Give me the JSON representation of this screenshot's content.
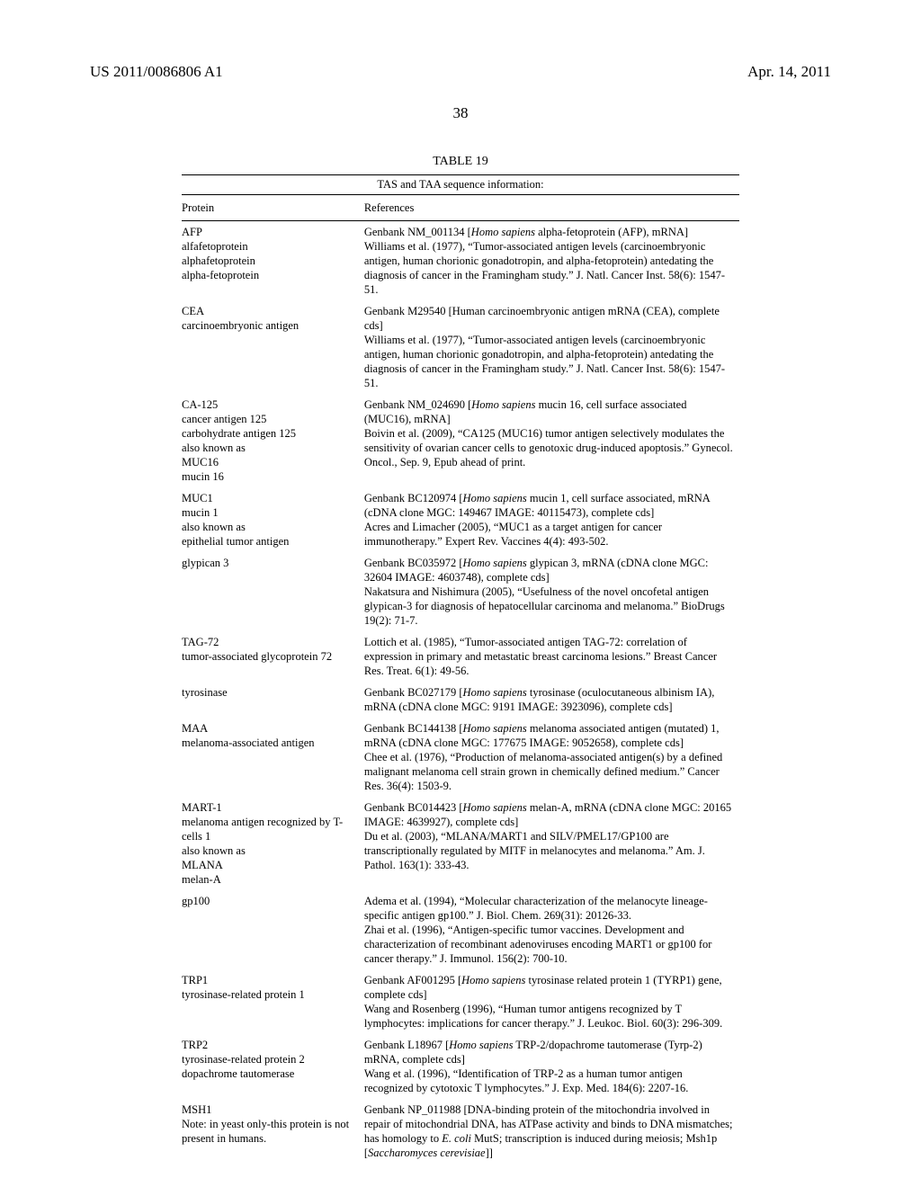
{
  "header": {
    "left": "US 2011/0086806 A1",
    "right": "Apr. 14, 2011"
  },
  "page_number": "38",
  "table": {
    "title": "TABLE 19",
    "caption": "TAS and TAA sequence information:",
    "col_protein": "Protein",
    "col_references": "References",
    "rows": [
      {
        "protein": "AFP\nalfafetoprotein\nalphafetoprotein\nalpha-fetoprotein",
        "refs": "Genbank NM_001134 [<i>Homo sapiens</i> alpha-fetoprotein (AFP), mRNA]\nWilliams et al. (1977), “Tumor-associated antigen levels (carcinoembryonic antigen, human chorionic gonadotropin, and alpha-fetoprotein) antedating the diagnosis of cancer in the Framingham study.” J. Natl. Cancer Inst. 58(6): 1547-51."
      },
      {
        "protein": "CEA\ncarcinoembryonic antigen",
        "refs": "Genbank M29540 [Human carcinoembryonic antigen mRNA (CEA), complete cds]\nWilliams et al. (1977), “Tumor-associated antigen levels (carcinoembryonic antigen, human chorionic gonadotropin, and alpha-fetoprotein) antedating the diagnosis of cancer in the Framingham study.” J. Natl. Cancer Inst. 58(6): 1547-51."
      },
      {
        "protein": "CA-125\ncancer antigen 125\ncarbohydrate antigen 125\nalso known as\nMUC16\nmucin 16",
        "refs": "Genbank NM_024690 [<i>Homo sapiens</i> mucin 16, cell surface associated (MUC16), mRNA]\nBoivin et al. (2009), “CA125 (MUC16) tumor antigen selectively modulates the sensitivity of ovarian cancer cells to genotoxic drug-induced apoptosis.” Gynecol. Oncol., Sep. 9, Epub ahead of print."
      },
      {
        "protein": "MUC1\nmucin 1\nalso known as\nepithelial tumor antigen",
        "refs": "Genbank BC120974 [<i>Homo sapiens</i> mucin 1, cell surface associated, mRNA (cDNA clone MGC: 149467 IMAGE: 40115473), complete cds]\nAcres and Limacher (2005), “MUC1 as a target antigen for cancer immunotherapy.” Expert Rev. Vaccines 4(4): 493-502."
      },
      {
        "protein": "glypican 3",
        "refs": "Genbank BC035972 [<i>Homo sapiens</i> glypican 3, mRNA (cDNA clone MGC: 32604 IMAGE: 4603748), complete cds]\nNakatsura and Nishimura (2005), “Usefulness of the novel oncofetal antigen glypican-3 for diagnosis of hepatocellular carcinoma and melanoma.” BioDrugs 19(2): 71-7."
      },
      {
        "protein": "TAG-72\ntumor-associated glycoprotein 72",
        "refs": "Lottich et al. (1985), “Tumor-associated antigen TAG-72: correlation of expression in primary and metastatic breast carcinoma lesions.” Breast Cancer Res. Treat. 6(1): 49-56."
      },
      {
        "protein": "tyrosinase",
        "refs": "Genbank BC027179 [<i>Homo sapiens</i> tyrosinase (oculocutaneous albinism IA), mRNA (cDNA clone MGC: 9191 IMAGE: 3923096), complete cds]"
      },
      {
        "protein": "MAA\nmelanoma-associated antigen",
        "refs": "Genbank BC144138 [<i>Homo sapiens</i> melanoma associated antigen (mutated) 1, mRNA (cDNA clone MGC: 177675 IMAGE: 9052658), complete cds]\nChee et al. (1976), “Production of melanoma-associated antigen(s) by a defined malignant melanoma cell strain grown in chemically defined medium.” Cancer Res. 36(4): 1503-9."
      },
      {
        "protein": "MART-1\nmelanoma antigen recognized by T-cells 1\nalso known as\nMLANA\nmelan-A",
        "refs": "Genbank BC014423 [<i>Homo sapiens</i> melan-A, mRNA (cDNA clone MGC: 20165 IMAGE: 4639927), complete cds]\nDu et al. (2003), “MLANA/MART1 and SILV/PMEL17/GP100 are transcriptionally regulated by MITF in melanocytes and melanoma.” Am. J. Pathol. 163(1): 333-43."
      },
      {
        "protein": "gp100",
        "refs": "Adema et al. (1994), “Molecular characterization of the melanocyte lineage-specific antigen gp100.” J. Biol. Chem. 269(31): 20126-33.\nZhai et al. (1996), “Antigen-specific tumor vaccines. Development and characterization of recombinant adenoviruses encoding MART1 or gp100 for cancer therapy.” J. Immunol. 156(2): 700-10."
      },
      {
        "protein": "TRP1\ntyrosinase-related protein 1",
        "refs": "Genbank AF001295 [<i>Homo sapiens</i> tyrosinase related protein 1 (TYRP1) gene, complete cds]\nWang and Rosenberg (1996), “Human tumor antigens recognized by T lymphocytes: implications for cancer therapy.” J. Leukoc. Biol. 60(3): 296-309."
      },
      {
        "protein": "TRP2\ntyrosinase-related protein 2\ndopachrome tautomerase",
        "refs": "Genbank L18967 [<i>Homo sapiens</i> TRP-2/dopachrome tautomerase (Tyrp-2) mRNA, complete cds]\nWang et al. (1996), “Identification of TRP-2 as a human tumor antigen recognized by cytotoxic T lymphocytes.” J. Exp. Med. 184(6): 2207-16."
      },
      {
        "protein": "MSH1\nNote: in yeast only-this protein is not present in humans.",
        "refs": "Genbank NP_011988 [DNA-binding protein of the mitochondria involved in repair of mitochondrial DNA, has ATPase activity and binds to DNA mismatches; has homology to <i>E. coli</i> MutS; transcription is induced during meiosis; Msh1p [<i>Saccharomyces cerevisiae</i>]]"
      }
    ]
  }
}
